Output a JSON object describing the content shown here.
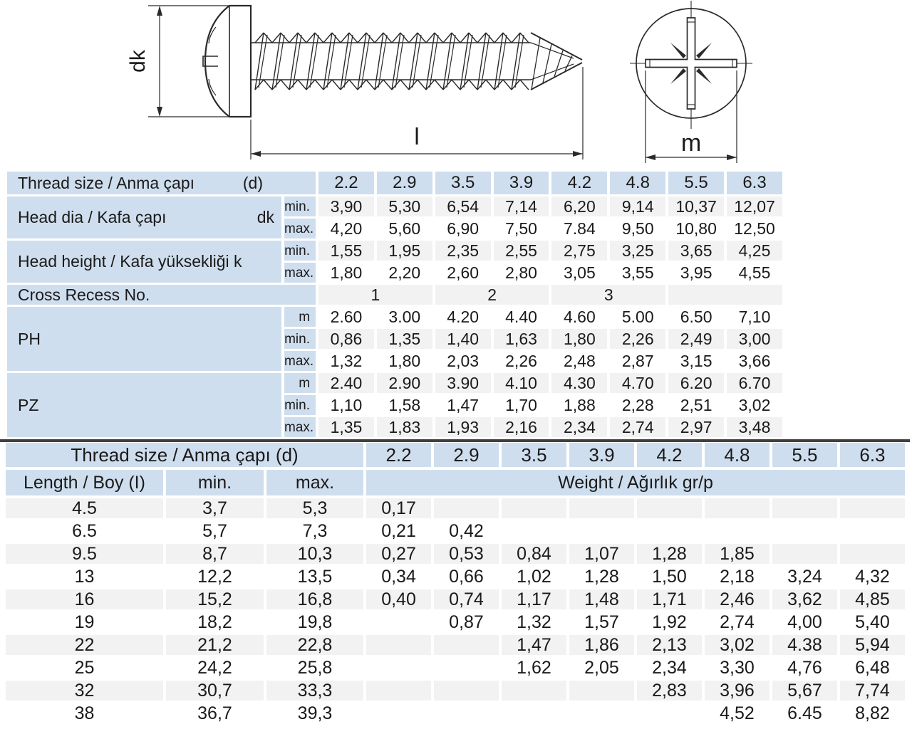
{
  "diagram": {
    "dk_label": "dk",
    "length_label": "l",
    "m_label": "m"
  },
  "table1": {
    "header_label": "Thread size / Anma çapı",
    "header_d": "(d)",
    "sizes": [
      "2.2",
      "2.9",
      "3.5",
      "3.9",
      "4.2",
      "4.8",
      "5.5",
      "6.3"
    ],
    "groups": [
      {
        "label": "Head dia / Kafa çapı",
        "symbol": "dk",
        "rows": [
          {
            "sub": "min.",
            "values": [
              "3,90",
              "5,30",
              "6,54",
              "7,14",
              "6,20",
              "9,14",
              "10,37",
              "12,07"
            ]
          },
          {
            "sub": "max.",
            "values": [
              "4,20",
              "5,60",
              "6,90",
              "7,50",
              "7.84",
              "9,50",
              "10,80",
              "12,50"
            ]
          }
        ]
      },
      {
        "label": "Head height / Kafa yüksekliği k",
        "symbol": "",
        "rows": [
          {
            "sub": "min.",
            "values": [
              "1,55",
              "1,95",
              "2,35",
              "2,55",
              "2,75",
              "3,25",
              "3,65",
              "4,25"
            ]
          },
          {
            "sub": "max.",
            "values": [
              "1,80",
              "2,20",
              "2,60",
              "2,80",
              "3,05",
              "3,55",
              "3,95",
              "4,55"
            ]
          }
        ]
      },
      {
        "label": "PH",
        "symbol": "",
        "rows": [
          {
            "sub": "m",
            "values": [
              "2.60",
              "3.00",
              "4.20",
              "4.40",
              "4.60",
              "5.00",
              "6.50",
              "7,10"
            ]
          },
          {
            "sub": "min.",
            "values": [
              "0,86",
              "1,35",
              "1,40",
              "1,63",
              "1,80",
              "2,26",
              "2,49",
              "3,00"
            ]
          },
          {
            "sub": "max.",
            "values": [
              "1,32",
              "1,80",
              "2,03",
              "2,26",
              "2,48",
              "2,87",
              "3,15",
              "3,66"
            ]
          }
        ]
      },
      {
        "label": "PZ",
        "symbol": "",
        "rows": [
          {
            "sub": "m",
            "values": [
              "2.40",
              "2.90",
              "3.90",
              "4.10",
              "4.30",
              "4.70",
              "6.20",
              "6.70"
            ]
          },
          {
            "sub": "min.",
            "values": [
              "1,10",
              "1,58",
              "1,47",
              "1,70",
              "1,88",
              "2,28",
              "2,51",
              "3,02"
            ]
          },
          {
            "sub": "max.",
            "values": [
              "1,35",
              "1,83",
              "1,93",
              "2,16",
              "2,34",
              "2,74",
              "2,97",
              "3,48"
            ]
          }
        ]
      }
    ],
    "cross_recess": {
      "label": "Cross Recess No.",
      "groups": [
        "1",
        "2",
        "3",
        ""
      ]
    }
  },
  "table2": {
    "header_label": "Thread size / Anma çapı (d)",
    "sizes": [
      "2.2",
      "2.9",
      "3.5",
      "3.9",
      "4.2",
      "4.8",
      "5.5",
      "6.3"
    ],
    "col_length": "Length / Boy (I)",
    "col_min": "min.",
    "col_max": "max.",
    "col_weight": "Weight / Ağırlık gr/p",
    "rows": [
      {
        "length": "4.5",
        "min": "3,7",
        "max": "5,3",
        "weights": [
          "0,17",
          "",
          "",
          "",
          "",
          "",
          "",
          ""
        ]
      },
      {
        "length": "6.5",
        "min": "5,7",
        "max": "7,3",
        "weights": [
          "0,21",
          "0,42",
          "",
          "",
          "",
          "",
          "",
          ""
        ]
      },
      {
        "length": "9.5",
        "min": "8,7",
        "max": "10,3",
        "weights": [
          "0,27",
          "0,53",
          "0,84",
          "1,07",
          "1,28",
          "1,85",
          "",
          ""
        ]
      },
      {
        "length": "13",
        "min": "12,2",
        "max": "13,5",
        "weights": [
          "0,34",
          "0,66",
          "1,02",
          "1,28",
          "1,50",
          "2,18",
          "3,24",
          "4,32"
        ]
      },
      {
        "length": "16",
        "min": "15,2",
        "max": "16,8",
        "weights": [
          "0,40",
          "0,74",
          "1,17",
          "1,48",
          "1,71",
          "2,46",
          "3,62",
          "4,85"
        ]
      },
      {
        "length": "19",
        "min": "18,2",
        "max": "19,8",
        "weights": [
          "",
          "0,87",
          "1,32",
          "1,57",
          "1,92",
          "2,74",
          "4,00",
          "5,40"
        ]
      },
      {
        "length": "22",
        "min": "21,2",
        "max": "22,8",
        "weights": [
          "",
          "",
          "1,47",
          "1,86",
          "2,13",
          "3,02",
          "4.38",
          "5,94"
        ]
      },
      {
        "length": "25",
        "min": "24,2",
        "max": "25,8",
        "weights": [
          "",
          "",
          "1,62",
          "2,05",
          "2,34",
          "3,30",
          "4,76",
          "6,48"
        ]
      },
      {
        "length": "32",
        "min": "30,7",
        "max": "33,3",
        "weights": [
          "",
          "",
          "",
          "",
          "2,83",
          "3,96",
          "5,67",
          "7,74"
        ]
      },
      {
        "length": "38",
        "min": "36,7",
        "max": "39,3",
        "weights": [
          "",
          "",
          "",
          "",
          "",
          "4,52",
          "6.45",
          "8,82"
        ]
      }
    ]
  },
  "colors": {
    "header_blue": "#cfdeee",
    "stripe_gray": "#f2f2f2",
    "divider_gray": "#3f3f3f",
    "line_dark": "#2a2a2a",
    "text_dark": "#1a1a1a"
  }
}
